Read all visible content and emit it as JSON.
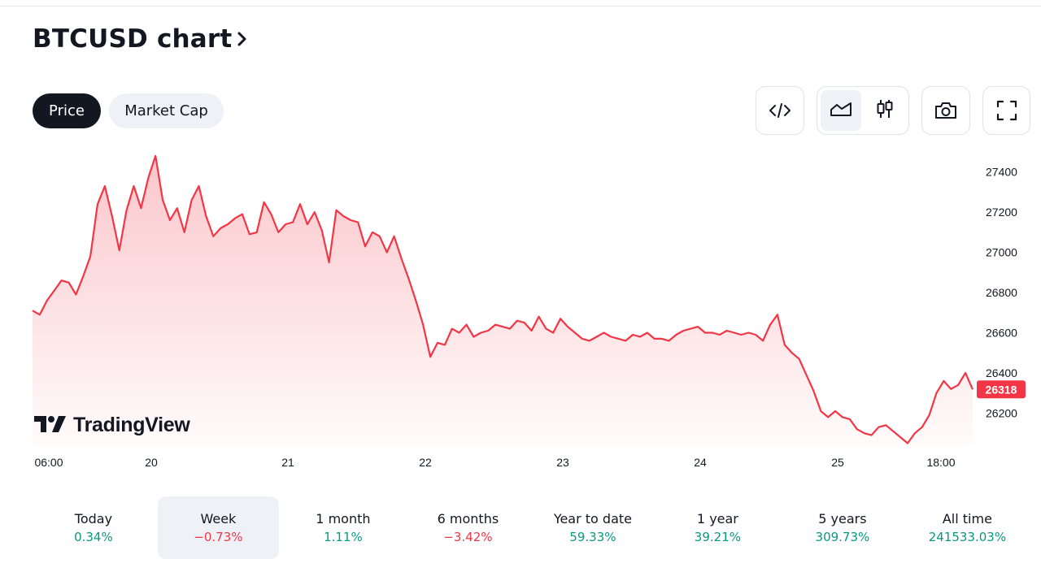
{
  "header": {
    "title": "BTCUSD chart"
  },
  "tabs": [
    {
      "label": "Price",
      "active": true
    },
    {
      "label": "Market Cap",
      "active": false
    }
  ],
  "toolbar": {
    "embed_icon": "code-icon",
    "area_icon": "area-chart-icon",
    "candles_icon": "candlestick-icon",
    "snapshot_icon": "camera-icon",
    "fullscreen_icon": "fullscreen-icon"
  },
  "watermark": {
    "text": "TradingView"
  },
  "colors": {
    "line": "#f23645",
    "positive": "#089981",
    "negative": "#f23645",
    "dark": "#131722"
  },
  "chart_data": {
    "type": "area",
    "title": "",
    "xlabel": "",
    "ylabel": "",
    "x_ticks": [
      "06:00",
      "20",
      "21",
      "22",
      "23",
      "24",
      "25",
      "18:00"
    ],
    "y_ticks": [
      27400,
      27200,
      27000,
      26800,
      26600,
      26400,
      26200
    ],
    "ylim": [
      26040,
      27520
    ],
    "last_price": 26318,
    "last_price_label": "26318",
    "grid": false,
    "series": [
      {
        "values": [
          26710,
          26690,
          26760,
          26810,
          26860,
          26850,
          26790,
          26880,
          26980,
          27240,
          27330,
          27180,
          27010,
          27210,
          27330,
          27220,
          27370,
          27480,
          27260,
          27160,
          27220,
          27100,
          27260,
          27330,
          27180,
          27080,
          27120,
          27140,
          27170,
          27190,
          27090,
          27100,
          27250,
          27190,
          27100,
          27140,
          27150,
          27240,
          27140,
          27200,
          27110,
          26950,
          27210,
          27180,
          27160,
          27150,
          27030,
          27100,
          27080,
          27000,
          27080,
          26970,
          26870,
          26760,
          26640,
          26480,
          26550,
          26540,
          26620,
          26600,
          26640,
          26580,
          26600,
          26610,
          26640,
          26630,
          26620,
          26660,
          26650,
          26610,
          26680,
          26620,
          26600,
          26670,
          26630,
          26600,
          26570,
          26560,
          26580,
          26600,
          26580,
          26570,
          26560,
          26590,
          26580,
          26600,
          26570,
          26570,
          26560,
          26590,
          26610,
          26620,
          26630,
          26600,
          26600,
          26590,
          26610,
          26600,
          26590,
          26600,
          26590,
          26560,
          26640,
          26690,
          26540,
          26500,
          26470,
          26390,
          26310,
          26210,
          26180,
          26210,
          26180,
          26170,
          26120,
          26100,
          26090,
          26130,
          26140,
          26110,
          26080,
          26050,
          26100,
          26130,
          26190,
          26300,
          26360,
          26320,
          26340,
          26400,
          26318
        ]
      }
    ]
  },
  "performance": [
    {
      "label": "Today",
      "value": "0.34%",
      "trend": "up",
      "selected": false
    },
    {
      "label": "Week",
      "value": "−0.73%",
      "trend": "down",
      "selected": true
    },
    {
      "label": "1 month",
      "value": "1.11%",
      "trend": "up",
      "selected": false
    },
    {
      "label": "6 months",
      "value": "−3.42%",
      "trend": "down",
      "selected": false
    },
    {
      "label": "Year to date",
      "value": "59.33%",
      "trend": "up",
      "selected": false
    },
    {
      "label": "1 year",
      "value": "39.21%",
      "trend": "up",
      "selected": false
    },
    {
      "label": "5 years",
      "value": "309.73%",
      "trend": "up",
      "selected": false
    },
    {
      "label": "All time",
      "value": "241533.03%",
      "trend": "up",
      "selected": false
    }
  ]
}
